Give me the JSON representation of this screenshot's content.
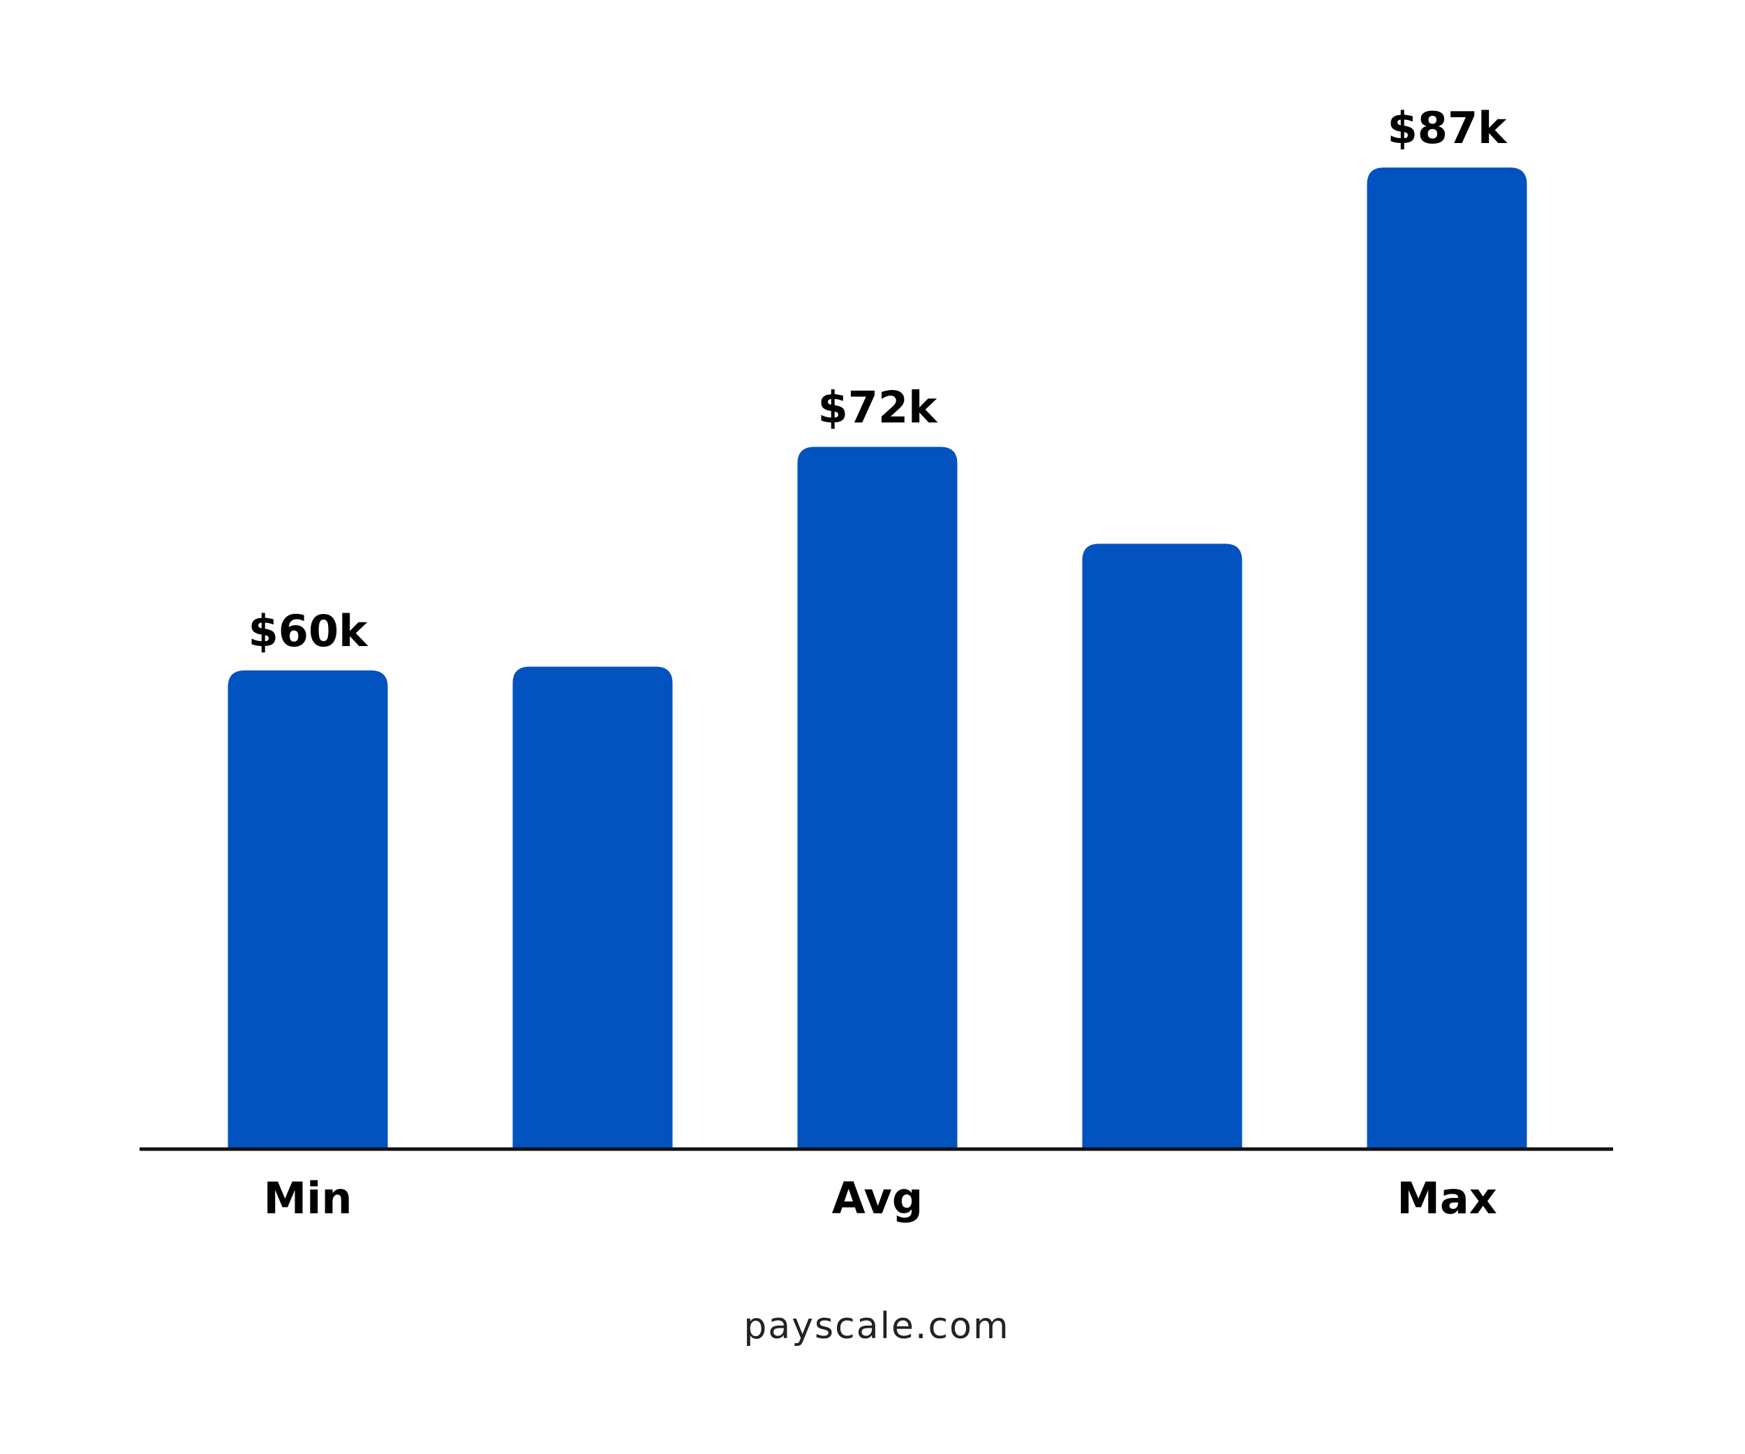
{
  "chart_data": {
    "type": "bar",
    "categories": [
      "Min",
      null,
      "Avg",
      null,
      "Max"
    ],
    "values": [
      60000,
      60200,
      72000,
      66800,
      87000
    ],
    "value_labels": [
      "$60k",
      null,
      "$72k",
      null,
      "$87k"
    ],
    "color": "#0252c0",
    "ylim": [
      34300,
      90000
    ],
    "source": "payscale.com"
  }
}
